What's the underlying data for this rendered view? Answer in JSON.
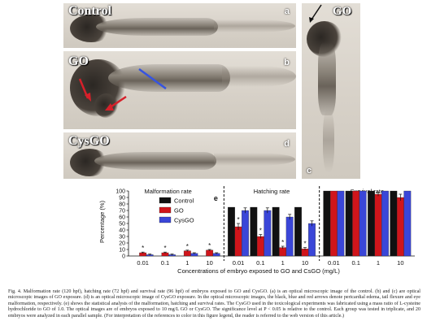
{
  "panels": {
    "a": {
      "label": "Control",
      "letter": "a"
    },
    "b": {
      "label": "GO",
      "letter": "b"
    },
    "c": {
      "label": "GO",
      "letter": "c"
    },
    "d": {
      "label": "CysGO",
      "letter": "d"
    }
  },
  "colors": {
    "control": "#111111",
    "go": "#d0151b",
    "cysgo": "#3a46d8",
    "red_arrow": "#d6202a",
    "blue_arrow": "#3654e0",
    "black_arrow": "#111111"
  },
  "chart_data": {
    "type": "bar",
    "panel_letter": "e",
    "ylabel": "Percentage (%)",
    "xlabel": "Concentrations of embryo exposed to GO and CsGO (mg/L)",
    "ylim": [
      0,
      100
    ],
    "yticks": [
      0,
      10,
      20,
      30,
      40,
      50,
      60,
      70,
      80,
      90,
      100
    ],
    "categories": [
      "0.01",
      "0.1",
      "1",
      "10"
    ],
    "legend": [
      "Control",
      "GO",
      "CysGO"
    ],
    "groups": [
      {
        "title": "Malformation rate",
        "series": [
          {
            "name": "Control",
            "values": [
              0,
              0,
              0,
              0
            ],
            "errors": [
              0,
              0,
              0,
              0
            ]
          },
          {
            "name": "GO",
            "values": [
              5,
              5,
              8,
              9
            ],
            "errors": [
              1,
              1,
              1,
              1
            ]
          },
          {
            "name": "CysGO",
            "values": [
              2,
              2,
              4,
              4
            ],
            "errors": [
              1,
              1,
              1,
              1
            ]
          }
        ],
        "significant": [
          true,
          true,
          true,
          true
        ]
      },
      {
        "title": "Hatching rate",
        "series": [
          {
            "name": "Control",
            "values": [
              75,
              75,
              75,
              75
            ],
            "errors": [
              0,
              0,
              0,
              0
            ]
          },
          {
            "name": "GO",
            "values": [
              45,
              30,
              13,
              11
            ],
            "errors": [
              5,
              3,
              2,
              2
            ]
          },
          {
            "name": "CysGO",
            "values": [
              70,
              70,
              60,
              50
            ],
            "errors": [
              4,
              4,
              4,
              4
            ]
          }
        ],
        "significant": [
          true,
          true,
          true,
          true
        ]
      },
      {
        "title": "Survival rate",
        "series": [
          {
            "name": "Control",
            "values": [
              100,
              100,
              100,
              100
            ],
            "errors": [
              0,
              0,
              0,
              0
            ]
          },
          {
            "name": "GO",
            "values": [
              100,
              100,
              95,
              90
            ],
            "errors": [
              0,
              0,
              3,
              5
            ]
          },
          {
            "name": "CysGO",
            "values": [
              100,
              100,
              100,
              100
            ],
            "errors": [
              0,
              0,
              0,
              0
            ]
          }
        ],
        "significant": [
          false,
          false,
          false,
          false
        ]
      }
    ],
    "significance_marker": "*"
  },
  "caption": "Fig. 4. Malformation rate (120 hpf), hatching rate (72 hpf) and survival rate (96 hpf) of embryos exposed to GO and CysGO. (a) is an optical microscopic image of the control. (b) and (c) are optical microscopic images of GO exposure. (d) is an optical microscopic image of CysGO exposure. In the optical microscopic images, the black, blue and red arrows denote pericardial edema, tail flexure and eye malformation, respectively. (e) shows the statistical analysis of the malformation, hatching and survival rates. The CysGO used in the toxicological experiments was fabricated using a mass ratio of L-cysteine hydrochloride to GO of 1.0. The optical images are of embryos exposed to 10 mg/L GO or CysGO. The significance level at P < 0.05 is relative to the control. Each group was tested in triplicate, and 20 embryos were analyzed in each parallel sample. (For interpretation of the references to color in this figure legend, the reader is referred to the web version of this article.)"
}
